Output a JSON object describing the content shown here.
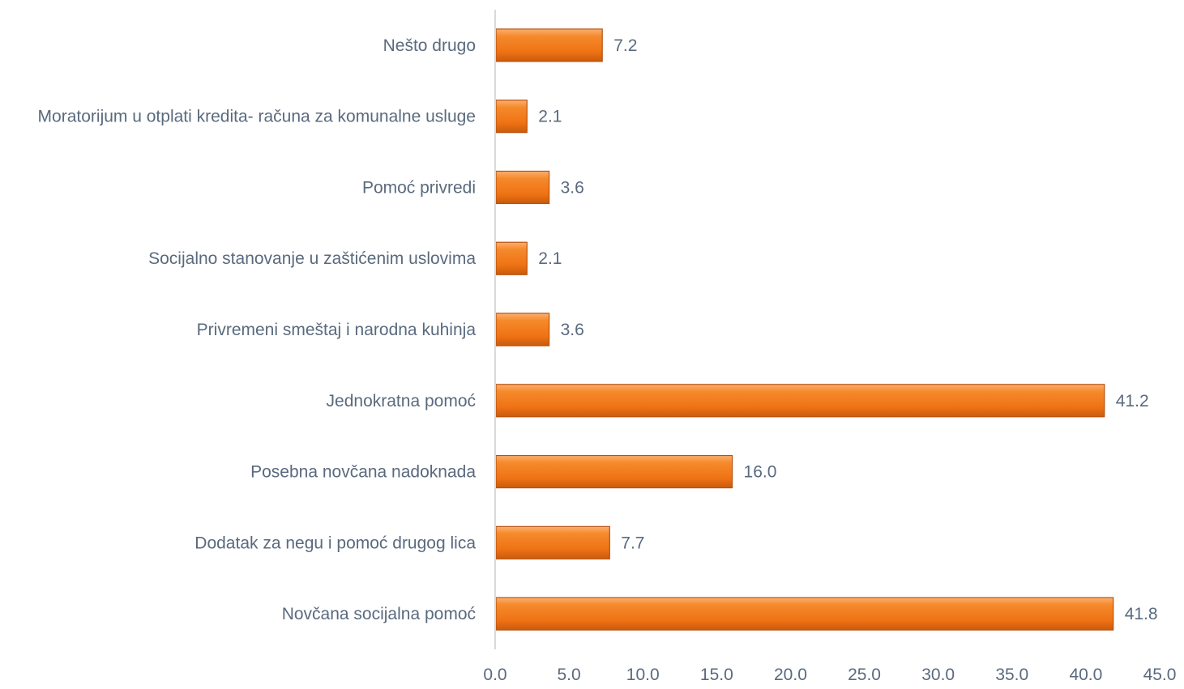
{
  "chart_data": {
    "type": "bar",
    "orientation": "horizontal",
    "categories": [
      "Nešto drugo",
      "Moratorijum u otplati kredita- računa za komunalne usluge",
      "Pomoć privredi",
      "Socijalno stanovanje u zaštićenim uslovima",
      "Privremeni smeštaj i narodna kuhinja",
      "Jednokratna pomoć",
      "Posebna novčana nadoknada",
      "Dodatak za negu i pomoć drugog lica",
      "Novčana socijalna pomoć"
    ],
    "values": [
      7.2,
      2.1,
      3.6,
      2.1,
      3.6,
      41.2,
      16.0,
      7.7,
      41.8
    ],
    "value_labels": [
      "7.2",
      "2.1",
      "3.6",
      "2.1",
      "3.6",
      "41.2",
      "16.0",
      "7.7",
      "41.8"
    ],
    "xlim": [
      0,
      45
    ],
    "x_ticks": [
      "0.0",
      "5.0",
      "10.0",
      "15.0",
      "20.0",
      "25.0",
      "30.0",
      "35.0",
      "40.0",
      "45.0"
    ],
    "title": "",
    "xlabel": "",
    "ylabel": "",
    "grid": false,
    "legend": "none",
    "bar_color": "#f07c19",
    "bar_edge_color": "#b85210",
    "text_color": "#5a6a7e",
    "axis_color": "#d9d9d9"
  }
}
